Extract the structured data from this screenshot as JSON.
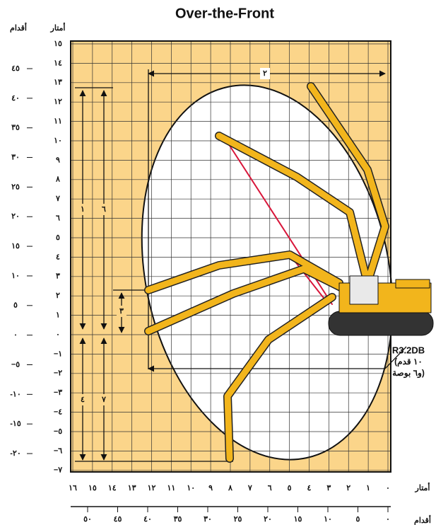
{
  "title": "Over-the-Front",
  "y_axis": {
    "meters_header": "أمتار",
    "feet_header": "أقدام",
    "meters": [
      "١٥",
      "١٤",
      "١٣",
      "١٢",
      "١١",
      "١٠",
      "٩",
      "٨",
      "٧",
      "٦",
      "٥",
      "٤",
      "٣",
      "٢",
      "١",
      "٠",
      "−١",
      "−٢",
      "−٣",
      "−٤",
      "−٥",
      "−٦",
      "−٧"
    ],
    "feet": [
      "٤٥",
      "٤٠",
      "٣٥",
      "٣٠",
      "٢٥",
      "٢٠",
      "١٥",
      "١٠",
      "٥",
      "٠",
      "−٥",
      "-١٠",
      "-١٥",
      "-٢٠"
    ]
  },
  "x_axis": {
    "meters_header": "أمتار",
    "feet_header": "أقدام",
    "meters": [
      "١٦",
      "١٥",
      "١٤",
      "١٣",
      "١٢",
      "١١",
      "١٠",
      "٩",
      "٨",
      "٧",
      "٦",
      "٥",
      "٤",
      "٣",
      "٢",
      "١",
      "٠"
    ],
    "feet": [
      "٥٠",
      "٤٥",
      "٤٠",
      "٣٥",
      "٣٠",
      "٢٥",
      "٢٠",
      "١٥",
      "١٠",
      "٥",
      "٠"
    ]
  },
  "dimensions": [
    "٢",
    "١",
    "٦",
    "٣",
    "٤",
    "٧"
  ],
  "attachment": [
    "R3.2DB",
    "(١٠ قدم",
    "و٦ بوصة)"
  ]
}
